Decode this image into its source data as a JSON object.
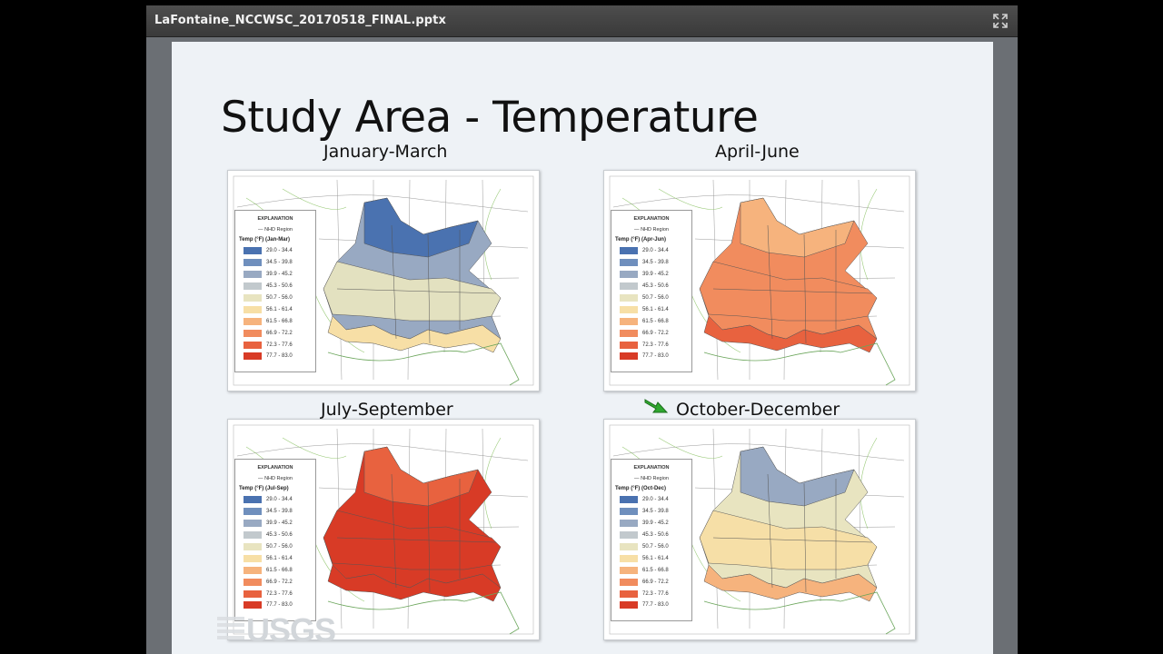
{
  "window": {
    "title": "LaFontaine_NCCWSC_20170518_FINAL.pptx",
    "expand_icon": "expand-icon"
  },
  "slide": {
    "title": "Study Area - Temperature",
    "logo_text": "USGS",
    "arrow_icon": "green-arrow-icon",
    "panels": [
      {
        "label": "January-March",
        "legend_title": "EXPLANATION",
        "legend_nhd": "NHD Region",
        "legend_header": "Temp (°F) (Jan-Mar)"
      },
      {
        "label": "April-June",
        "legend_title": "EXPLANATION",
        "legend_nhd": "NHD Region",
        "legend_header": "Temp (°F) (Apr-Jun)"
      },
      {
        "label": "July-September",
        "legend_title": "EXPLANATION",
        "legend_nhd": "NHD Region",
        "legend_header": "Temp (°F) (Jul-Sep)"
      },
      {
        "label": "October-December",
        "legend_title": "EXPLANATION",
        "legend_nhd": "NHD Region",
        "legend_header": "Temp (°F) (Oct-Dec)"
      }
    ],
    "legend_classes": [
      {
        "range": "29.0 - 34.4",
        "color": "#4a72b0"
      },
      {
        "range": "34.5 - 39.8",
        "color": "#6f8fbd"
      },
      {
        "range": "39.9 - 45.2",
        "color": "#98a9c2"
      },
      {
        "range": "45.3 - 50.6",
        "color": "#c2c9cd"
      },
      {
        "range": "50.7 - 56.0",
        "color": "#e8e4c0"
      },
      {
        "range": "56.1 - 61.4",
        "color": "#f7dfa6"
      },
      {
        "range": "61.5 - 66.8",
        "color": "#f6b37d"
      },
      {
        "range": "66.9 - 72.2",
        "color": "#f18c5e"
      },
      {
        "range": "72.3 - 77.6",
        "color": "#e8623f"
      },
      {
        "range": "77.7 - 83.0",
        "color": "#d83b26"
      }
    ]
  }
}
